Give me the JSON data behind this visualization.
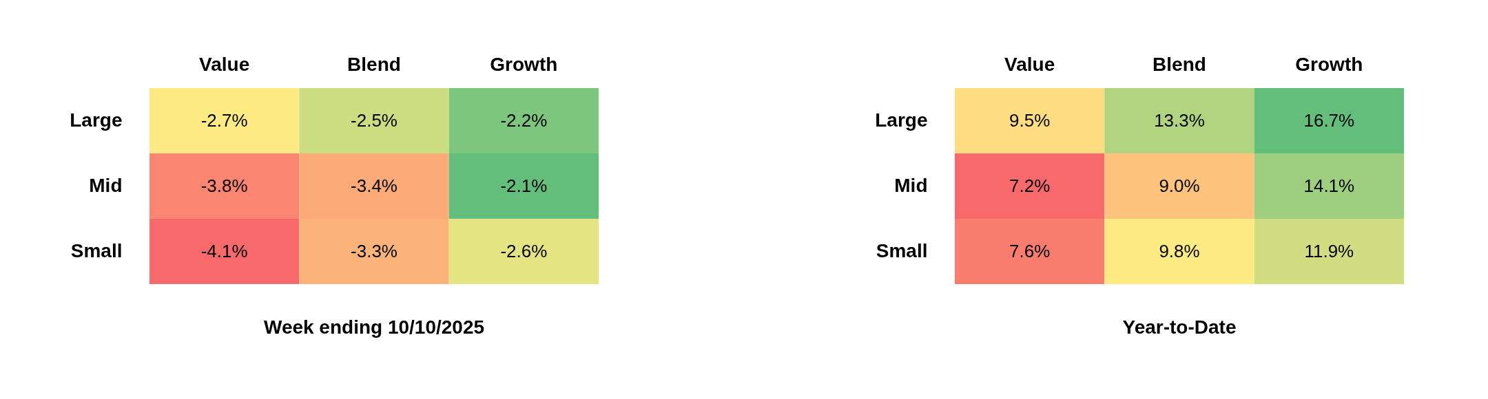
{
  "chart_data": [
    {
      "type": "heatmap",
      "title": "Week ending 10/10/2025",
      "categories": [
        "Value",
        "Blend",
        "Growth"
      ],
      "y_categories": [
        "Large",
        "Mid",
        "Small"
      ],
      "cells": [
        [
          -2.7,
          -2.5,
          -2.2
        ],
        [
          -3.8,
          -3.4,
          -2.1
        ],
        [
          -4.1,
          -3.3,
          -2.6
        ]
      ],
      "cell_labels": [
        [
          "-2.7%",
          "-2.5%",
          "-2.2%"
        ],
        [
          "-3.8%",
          "-3.4%",
          "-2.1%"
        ],
        [
          "-4.1%",
          "-3.3%",
          "-2.6%"
        ]
      ]
    },
    {
      "type": "heatmap",
      "title": "Year-to-Date",
      "categories": [
        "Value",
        "Blend",
        "Growth"
      ],
      "y_categories": [
        "Large",
        "Mid",
        "Small"
      ],
      "cells": [
        [
          9.5,
          13.3,
          16.7
        ],
        [
          7.2,
          9.0,
          14.1
        ],
        [
          7.6,
          9.8,
          11.9
        ]
      ],
      "cell_labels": [
        [
          "9.5%",
          "13.3%",
          "16.7%"
        ],
        [
          "7.2%",
          "9.0%",
          "14.1%"
        ],
        [
          "7.6%",
          "9.8%",
          "11.9%"
        ]
      ]
    }
  ]
}
